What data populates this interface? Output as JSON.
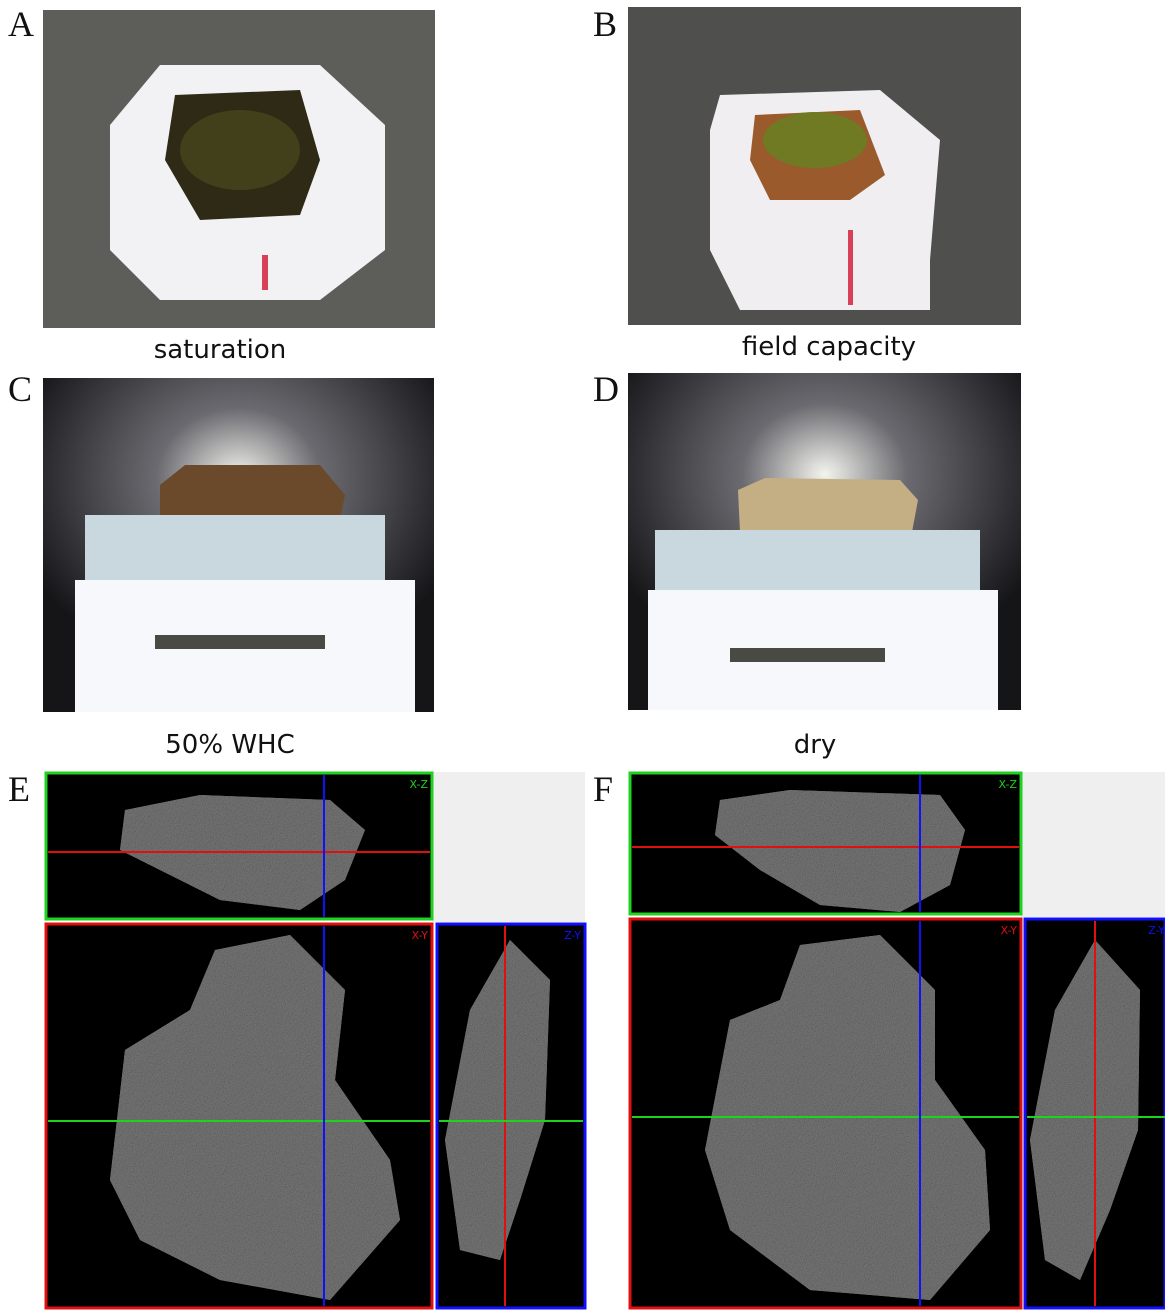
{
  "panels": [
    {
      "letter": "A",
      "caption": "saturation"
    },
    {
      "letter": "B",
      "caption": "field capacity"
    },
    {
      "letter": "C",
      "caption": "50% WHC"
    },
    {
      "letter": "D",
      "caption": "dry"
    },
    {
      "letter": "E",
      "views": [
        "X-Z",
        "X-Y",
        "Z-Y"
      ]
    },
    {
      "letter": "F",
      "views": [
        "X-Z",
        "X-Y",
        "Z-Y"
      ]
    }
  ]
}
